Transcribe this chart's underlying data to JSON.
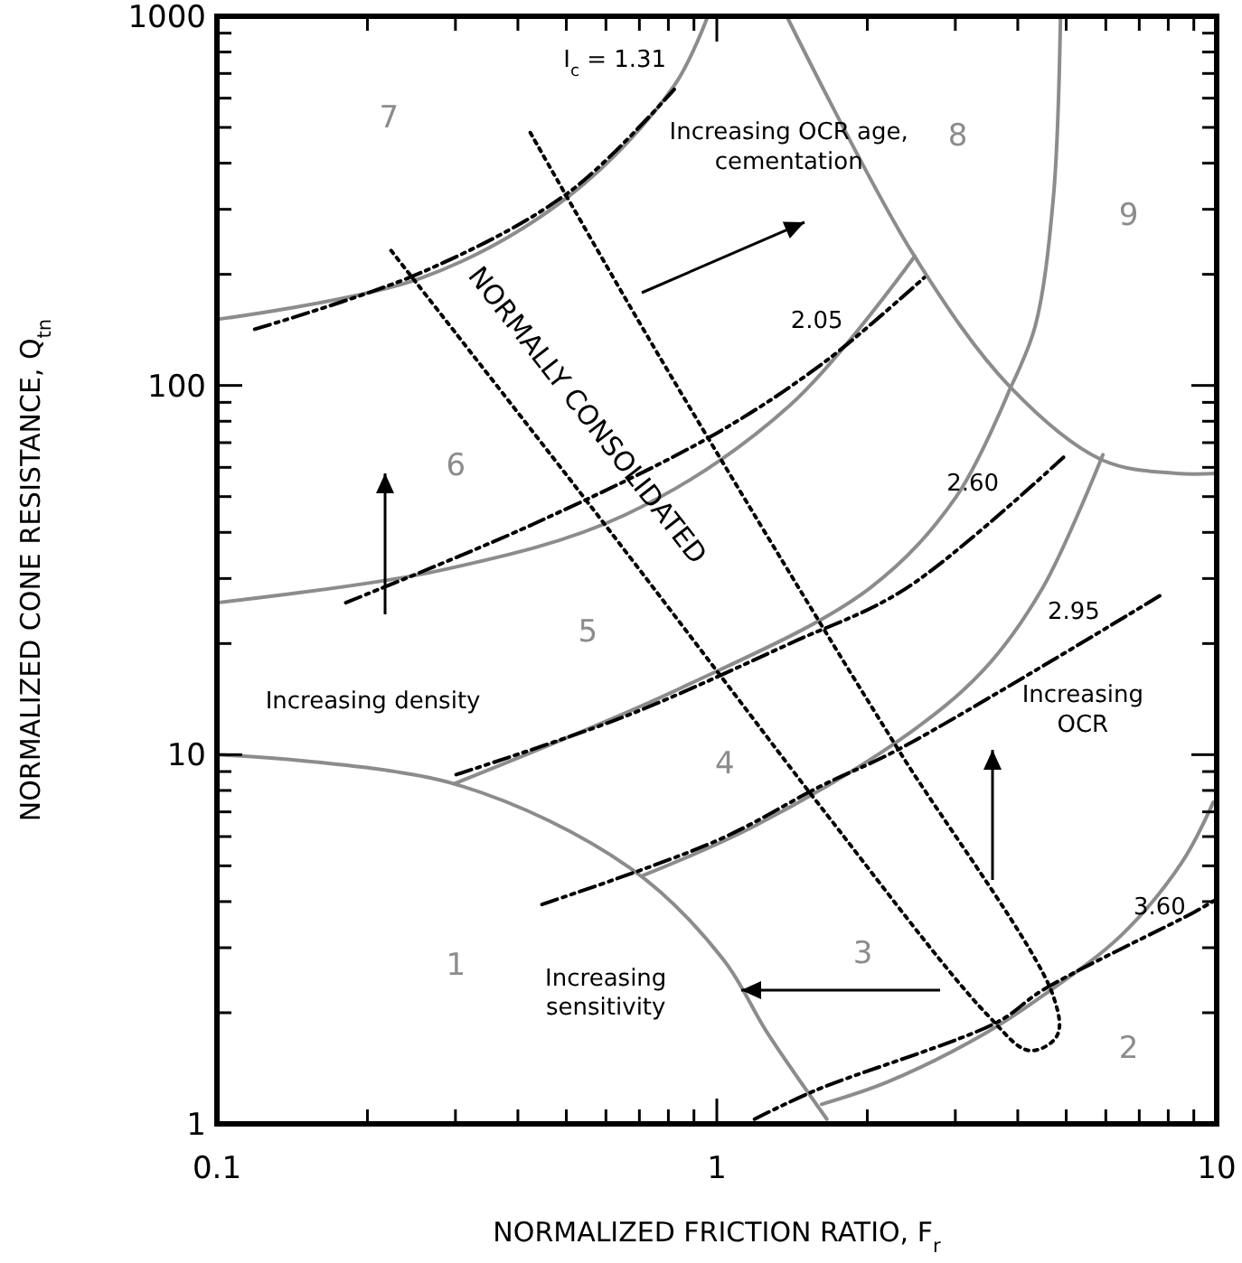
{
  "chart_data": {
    "type": "line",
    "xlabel": "NORMALIZED FRICTION RATIO, F$_{r}$",
    "ylabel": "NORMALIZED CONE RESISTANCE, Q$_{tn}$",
    "log": "xy",
    "grid": false,
    "xlim": [
      0.1,
      10
    ],
    "ylim": [
      1,
      1000
    ],
    "xticks": [
      0.1,
      {
        "value": 0.2,
        "label": null
      },
      {
        "value": 0.3,
        "label": null
      },
      {
        "value": 0.4,
        "label": null
      },
      {
        "value": 0.5,
        "label": null
      },
      {
        "value": 0.6,
        "label": null
      },
      {
        "value": 0.7,
        "label": null
      },
      {
        "value": 0.8,
        "label": null
      },
      {
        "value": 0.9,
        "label": null
      },
      1,
      {
        "value": 2,
        "label": null
      },
      {
        "value": 3,
        "label": null
      },
      {
        "value": 4,
        "label": null
      },
      {
        "value": 5,
        "label": null
      },
      {
        "value": 6,
        "label": null
      },
      {
        "value": 7,
        "label": null
      },
      {
        "value": 8,
        "label": null
      },
      {
        "value": 9,
        "label": null
      },
      10
    ],
    "yticks": [
      1,
      {
        "value": 2,
        "label": null
      },
      {
        "value": 3,
        "label": null
      },
      {
        "value": 4,
        "label": null
      },
      {
        "value": 5,
        "label": null
      },
      {
        "value": 6,
        "label": null
      },
      {
        "value": 7,
        "label": null
      },
      {
        "value": 8,
        "label": null
      },
      {
        "value": 9,
        "label": null
      },
      10,
      {
        "value": 20,
        "label": null
      },
      {
        "value": 30,
        "label": null
      },
      {
        "value": 40,
        "label": null
      },
      {
        "value": 50,
        "label": null
      },
      {
        "value": 60,
        "label": null
      },
      {
        "value": 70,
        "label": null
      },
      {
        "value": 80,
        "label": null
      },
      {
        "value": 90,
        "label": null
      },
      100,
      {
        "value": 200,
        "label": null
      },
      {
        "value": 300,
        "label": null
      },
      {
        "value": 400,
        "label": null
      },
      {
        "value": 500,
        "label": null
      },
      {
        "value": 600,
        "label": null
      },
      {
        "value": 700,
        "label": null
      },
      {
        "value": 800,
        "label": null
      },
      {
        "value": 900,
        "label": null
      },
      1000
    ],
    "series": [
      {
        "color": "#8c8c8c",
        "line_style": "solid",
        "x": [
          0.1,
          0.298,
          0.671,
          1.03,
          1.26,
          1.66
        ],
        "values": [
          10,
          8.34,
          4.93,
          2.79,
          1.77,
          1.03
        ]
      },
      {
        "color": "#8c8c8c",
        "line_style": "solid",
        "x": [
          1.62,
          2.2,
          3.47,
          4.48,
          6.44,
          8.51,
          9.84
        ],
        "values": [
          1.13,
          1.3,
          1.77,
          2.22,
          3.24,
          5.1,
          7.43
        ]
      },
      {
        "color": "#8c8c8c",
        "line_style": "solid",
        "x": [
          0.713,
          1.19,
          2.33,
          3.41,
          4.48,
          5.92
        ],
        "values": [
          4.71,
          6.41,
          11,
          16.9,
          28.2,
          64.9
        ]
      },
      {
        "color": "#8c8c8c",
        "line_style": "solid",
        "x": [
          0.298,
          0.843,
          2.02,
          3.01,
          3.87
        ],
        "values": [
          8.34,
          15.1,
          28.2,
          49.9,
          98.8
        ]
      },
      {
        "color": "#8c8c8c",
        "line_style": "solid",
        "x": [
          0.1,
          0.281,
          0.655,
          1.4,
          2.49
        ],
        "values": [
          25.8,
          31.6,
          44.6,
          88.3,
          224
        ]
      },
      {
        "color": "#8c8c8c",
        "line_style": "solid",
        "x": [
          0.1,
          0.258,
          0.508,
          0.822,
          0.959
        ],
        "values": [
          151,
          196,
          327,
          649,
          1000
        ]
      },
      {
        "color": "#8c8c8c",
        "line_style": "solid",
        "x": [
          1.38,
          2.47,
          3.87,
          5.92,
          8.3,
          10
        ],
        "values": [
          1000,
          227,
          98.8,
          62.7,
          57.8,
          57.8
        ]
      },
      {
        "color": "#8c8c8c",
        "line_style": "solid",
        "x": [
          4.87,
          4.71,
          4.33,
          3.87
        ],
        "values": [
          1000,
          320,
          144,
          98.8
        ]
      },
      {
        "color": "#000000",
        "line_style": "dashed",
        "x": [
          0.119,
          0.258,
          0.508,
          0.822
        ],
        "values": [
          142,
          203,
          335,
          634
        ]
      },
      {
        "color": "#000000",
        "line_style": "dashed",
        "x": [
          0.181,
          0.429,
          1,
          1.66,
          2.6
        ],
        "values": [
          25.8,
          42.1,
          74.3,
          117,
          196
        ]
      },
      {
        "color": "#000000",
        "line_style": "dashed",
        "x": [
          0.301,
          0.655,
          1.4,
          2.39,
          5
        ],
        "values": [
          8.83,
          12.7,
          20,
          28.2,
          64.9
        ]
      },
      {
        "color": "#000000",
        "line_style": "dashed",
        "x": [
          0.447,
          1,
          1.62,
          2.33,
          7.82
        ],
        "values": [
          3.93,
          5.85,
          8.24,
          10.4,
          27.3
        ]
      },
      {
        "color": "#000000",
        "line_style": "dashed",
        "x": [
          1.19,
          1.57,
          3.65,
          4.48,
          9.03,
          10
        ],
        "values": [
          1.03,
          1.23,
          1.89,
          2.3,
          3.75,
          4.06
        ]
      },
      {
        "color": "#000000",
        "line_style": "dotted",
        "x": [
          0.223,
          0.567,
          1.03,
          1.62,
          3.47,
          4.22,
          4.79,
          4.71,
          2.33,
          1.62,
          0.731,
          0.422
        ],
        "values": [
          232,
          46,
          16,
          7.18,
          1.98,
          1.58,
          1.73,
          2.22,
          10.1,
          22.4,
          134,
          488
        ]
      }
    ],
    "annotations": [
      "1",
      "2",
      "3",
      "4",
      "5",
      "6",
      "7",
      "8",
      "9",
      "I$_{c}$ = 1.31",
      "2.05",
      "2.60",
      "2.95",
      "3.60",
      "Increasing OCR age,\ncementation",
      "NORMALLY CONSOLIDATED",
      "Increasing density",
      "Increasing\nOCR",
      "Increasing\nsensitivity"
    ]
  }
}
